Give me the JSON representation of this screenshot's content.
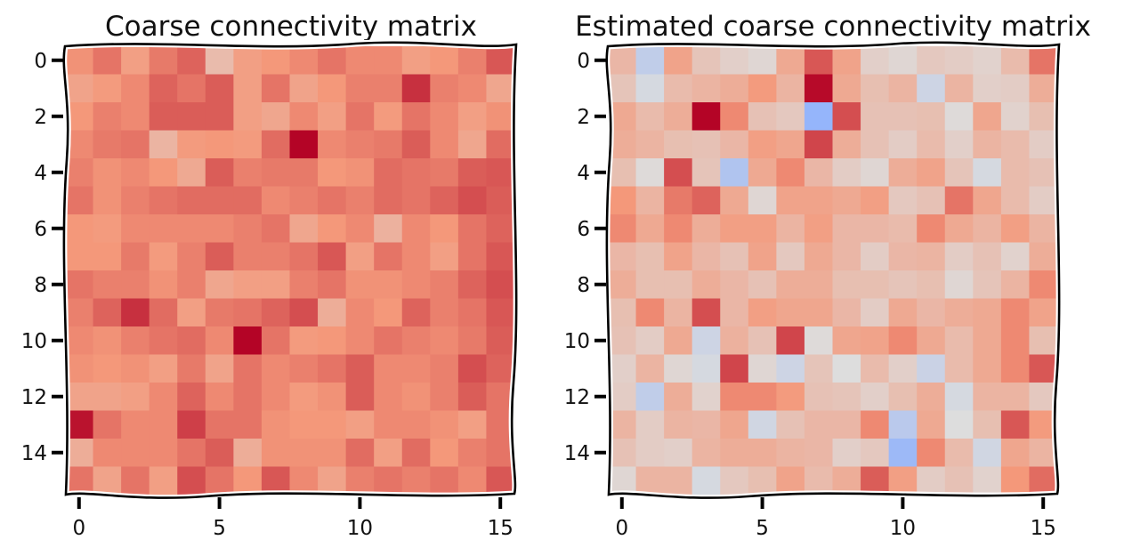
{
  "chart_data": [
    {
      "type": "heatmap",
      "title": "Coarse connectivity matrix",
      "xlabel": "",
      "ylabel": "",
      "rows": 16,
      "cols": 16,
      "x_ticks": [
        "0",
        "5",
        "10",
        "15"
      ],
      "y_ticks": [
        "0",
        "2",
        "4",
        "6",
        "8",
        "10",
        "12",
        "14"
      ],
      "colormap": "coolwarm",
      "vrange": [
        -1,
        1
      ],
      "values": [
        [
          0.52,
          0.62,
          0.45,
          0.6,
          0.68,
          0.25,
          0.45,
          0.5,
          0.55,
          0.62,
          0.55,
          0.55,
          0.45,
          0.5,
          0.58,
          0.72
        ],
        [
          0.42,
          0.48,
          0.55,
          0.68,
          0.62,
          0.7,
          0.45,
          0.62,
          0.42,
          0.5,
          0.58,
          0.58,
          0.85,
          0.58,
          0.55,
          0.4
        ],
        [
          0.5,
          0.58,
          0.55,
          0.7,
          0.7,
          0.7,
          0.45,
          0.4,
          0.55,
          0.45,
          0.62,
          0.48,
          0.62,
          0.55,
          0.45,
          0.52
        ],
        [
          0.55,
          0.6,
          0.62,
          0.3,
          0.48,
          0.5,
          0.48,
          0.65,
          1.0,
          0.55,
          0.58,
          0.6,
          0.7,
          0.55,
          0.4,
          0.65
        ],
        [
          0.58,
          0.52,
          0.55,
          0.5,
          0.38,
          0.7,
          0.58,
          0.6,
          0.6,
          0.5,
          0.52,
          0.65,
          0.62,
          0.6,
          0.7,
          0.72
        ],
        [
          0.62,
          0.52,
          0.58,
          0.62,
          0.65,
          0.65,
          0.65,
          0.55,
          0.58,
          0.62,
          0.58,
          0.65,
          0.62,
          0.68,
          0.75,
          0.7
        ],
        [
          0.5,
          0.48,
          0.55,
          0.55,
          0.55,
          0.55,
          0.58,
          0.62,
          0.4,
          0.5,
          0.55,
          0.32,
          0.55,
          0.5,
          0.62,
          0.68
        ],
        [
          0.5,
          0.5,
          0.6,
          0.48,
          0.58,
          0.7,
          0.58,
          0.58,
          0.62,
          0.72,
          0.45,
          0.62,
          0.55,
          0.45,
          0.62,
          0.72
        ],
        [
          0.62,
          0.58,
          0.58,
          0.52,
          0.58,
          0.4,
          0.45,
          0.45,
          0.58,
          0.62,
          0.52,
          0.52,
          0.55,
          0.58,
          0.68,
          0.75
        ],
        [
          0.58,
          0.68,
          0.85,
          0.65,
          0.45,
          0.6,
          0.62,
          0.68,
          0.75,
          0.35,
          0.55,
          0.5,
          0.68,
          0.58,
          0.62,
          0.72
        ],
        [
          0.55,
          0.52,
          0.58,
          0.62,
          0.65,
          0.55,
          1.0,
          0.62,
          0.48,
          0.5,
          0.55,
          0.62,
          0.58,
          0.55,
          0.6,
          0.7
        ],
        [
          0.52,
          0.5,
          0.52,
          0.45,
          0.6,
          0.42,
          0.62,
          0.55,
          0.58,
          0.62,
          0.7,
          0.55,
          0.55,
          0.58,
          0.75,
          0.68
        ],
        [
          0.42,
          0.42,
          0.45,
          0.55,
          0.68,
          0.55,
          0.62,
          0.55,
          0.48,
          0.52,
          0.7,
          0.55,
          0.52,
          0.58,
          0.7,
          0.62
        ],
        [
          0.95,
          0.62,
          0.55,
          0.55,
          0.8,
          0.62,
          0.62,
          0.52,
          0.5,
          0.5,
          0.45,
          0.55,
          0.55,
          0.52,
          0.45,
          0.62
        ],
        [
          0.35,
          0.55,
          0.55,
          0.55,
          0.62,
          0.7,
          0.35,
          0.52,
          0.52,
          0.52,
          0.65,
          0.45,
          0.65,
          0.5,
          0.58,
          0.62
        ],
        [
          0.62,
          0.42,
          0.62,
          0.45,
          0.75,
          0.62,
          0.5,
          0.72,
          0.55,
          0.42,
          0.58,
          0.62,
          0.58,
          0.62,
          0.55,
          0.72
        ]
      ]
    },
    {
      "type": "heatmap",
      "title": "Estimated coarse connectivity matrix",
      "xlabel": "",
      "ylabel": "",
      "rows": 16,
      "cols": 16,
      "x_ticks": [
        "0",
        "5",
        "10",
        "15"
      ],
      "y_ticks": [
        "0",
        "2",
        "4",
        "6",
        "8",
        "10",
        "12",
        "14"
      ],
      "colormap": "coolwarm",
      "vrange": [
        -1,
        1
      ],
      "values": [
        [
          0.28,
          -0.18,
          0.42,
          0.18,
          0.1,
          0.05,
          0.38,
          0.72,
          0.42,
          0.1,
          0.05,
          0.15,
          0.12,
          0.08,
          0.25,
          0.62
        ],
        [
          0.18,
          -0.05,
          0.25,
          0.3,
          0.35,
          0.48,
          0.3,
          0.98,
          0.38,
          0.22,
          0.3,
          -0.1,
          0.3,
          0.1,
          0.12,
          0.35
        ],
        [
          0.38,
          0.25,
          0.35,
          1.0,
          0.55,
          0.2,
          0.15,
          -0.45,
          0.75,
          0.2,
          0.2,
          0.22,
          0.02,
          0.4,
          0.08,
          0.22
        ],
        [
          0.35,
          0.3,
          0.22,
          0.2,
          0.28,
          0.45,
          0.4,
          0.78,
          0.35,
          0.2,
          0.12,
          0.25,
          0.1,
          0.3,
          0.25,
          0.12
        ],
        [
          0.22,
          0.02,
          0.75,
          0.18,
          -0.28,
          0.38,
          0.55,
          0.28,
          0.12,
          0.05,
          0.35,
          0.42,
          0.18,
          -0.05,
          0.25,
          0.2
        ],
        [
          0.5,
          0.3,
          0.6,
          0.68,
          0.38,
          0.05,
          0.42,
          0.42,
          0.38,
          0.45,
          0.15,
          0.2,
          0.62,
          0.4,
          0.25,
          0.12
        ],
        [
          0.55,
          0.38,
          0.55,
          0.35,
          0.45,
          0.45,
          0.3,
          0.45,
          0.28,
          0.28,
          0.25,
          0.55,
          0.38,
          0.3,
          0.45,
          0.3
        ],
        [
          0.28,
          0.22,
          0.42,
          0.28,
          0.2,
          0.42,
          0.15,
          0.38,
          0.28,
          0.12,
          0.28,
          0.3,
          0.12,
          0.2,
          0.08,
          0.35
        ],
        [
          0.35,
          0.22,
          0.22,
          0.35,
          0.28,
          0.2,
          0.35,
          0.35,
          0.22,
          0.22,
          0.18,
          0.22,
          0.05,
          0.18,
          0.3,
          0.55
        ],
        [
          0.22,
          0.55,
          0.3,
          0.75,
          0.28,
          0.45,
          0.4,
          0.4,
          0.28,
          0.12,
          0.38,
          0.28,
          0.35,
          0.38,
          0.55,
          0.42
        ],
        [
          0.2,
          0.12,
          0.38,
          -0.1,
          0.32,
          0.2,
          0.78,
          0.02,
          0.4,
          0.42,
          0.55,
          0.38,
          0.25,
          0.38,
          0.55,
          0.22
        ],
        [
          0.1,
          0.3,
          0.05,
          -0.05,
          0.78,
          0.05,
          -0.1,
          0.18,
          0.0,
          0.25,
          0.1,
          -0.12,
          0.25,
          0.38,
          0.55,
          0.72
        ],
        [
          0.12,
          -0.18,
          0.35,
          0.08,
          0.55,
          0.55,
          0.48,
          0.2,
          0.18,
          0.1,
          0.22,
          0.35,
          -0.05,
          0.3,
          0.3,
          0.15
        ],
        [
          0.3,
          0.12,
          0.3,
          0.28,
          0.4,
          -0.08,
          0.2,
          0.28,
          0.28,
          0.55,
          -0.22,
          0.38,
          0.0,
          0.22,
          0.72,
          0.48
        ],
        [
          0.2,
          0.12,
          0.1,
          0.3,
          0.35,
          0.35,
          0.3,
          0.28,
          0.1,
          0.15,
          -0.4,
          0.55,
          0.25,
          -0.08,
          0.4,
          0.3
        ],
        [
          0.05,
          0.3,
          0.3,
          -0.05,
          0.15,
          0.22,
          0.42,
          0.25,
          0.35,
          0.7,
          0.45,
          0.12,
          0.2,
          0.08,
          0.5,
          0.65
        ]
      ]
    }
  ]
}
